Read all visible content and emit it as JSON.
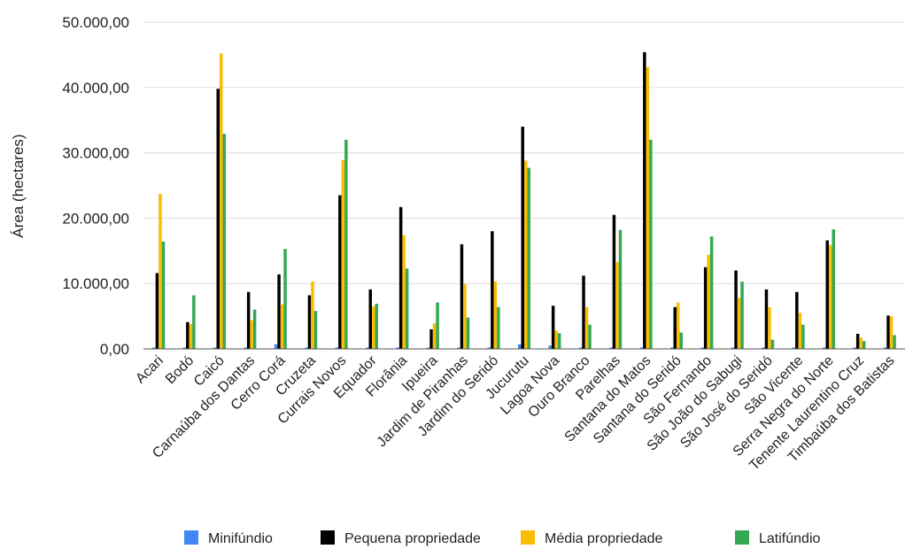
{
  "chart_data": {
    "type": "bar",
    "title": "",
    "xlabel": "",
    "ylabel": "Área (hectares)",
    "ylim": [
      0,
      50000
    ],
    "yticks": [
      "0,00",
      "10.000,00",
      "20.000,00",
      "30.000,00",
      "40.000,00",
      "50.000,00"
    ],
    "grid": true,
    "legend_position": "bottom",
    "categories": [
      "Acari",
      "Bodó",
      "Caicó",
      "Carnaúba dos Dantas",
      "Cerro Corá",
      "Cruzeta",
      "Currais Novos",
      "Equador",
      "Florânia",
      "Ipueira",
      "Jardim de Piranhas",
      "Jardim do Seridó",
      "Jucurutu",
      "Lagoa Nova",
      "Ouro Branco",
      "Parelhas",
      "Santana do Matos",
      "Santana do Seridó",
      "São Fernando",
      "São João do Sabugi",
      "São José do Seridó",
      "São Vicente",
      "Serra Negra do Norte",
      "Tenente Laurentino Cruz",
      "Timbaúba dos Batistas"
    ],
    "series": [
      {
        "name": "Minifúndio",
        "color": "#4285f4",
        "values": [
          150,
          100,
          200,
          120,
          700,
          100,
          200,
          100,
          150,
          100,
          100,
          150,
          700,
          500,
          100,
          200,
          150,
          150,
          150,
          100,
          100,
          150,
          150,
          100,
          100
        ]
      },
      {
        "name": "Pequena propriedade",
        "color": "#000000",
        "values": [
          11600,
          4100,
          39800,
          8700,
          11400,
          8200,
          23500,
          9100,
          21700,
          3000,
          16000,
          18000,
          34000,
          6600,
          11200,
          20500,
          45400,
          6400,
          12500,
          12000,
          9100,
          8700,
          16600,
          2300,
          5100
        ]
      },
      {
        "name": "Média propriedade",
        "color": "#fbbc04",
        "values": [
          23700,
          3800,
          45200,
          4400,
          6800,
          10300,
          28900,
          6500,
          17400,
          3900,
          9900,
          10300,
          28800,
          2800,
          6400,
          13300,
          43100,
          7100,
          14400,
          7800,
          6400,
          5500,
          15900,
          1700,
          5000
        ]
      },
      {
        "name": "Latifúndio",
        "color": "#34a853",
        "values": [
          16400,
          8200,
          32900,
          6000,
          15300,
          5800,
          32000,
          6900,
          12300,
          7100,
          4800,
          6400,
          27700,
          2400,
          3700,
          18200,
          32000,
          2500,
          17200,
          10300,
          1400,
          3700,
          18300,
          1200,
          2100
        ]
      }
    ]
  }
}
